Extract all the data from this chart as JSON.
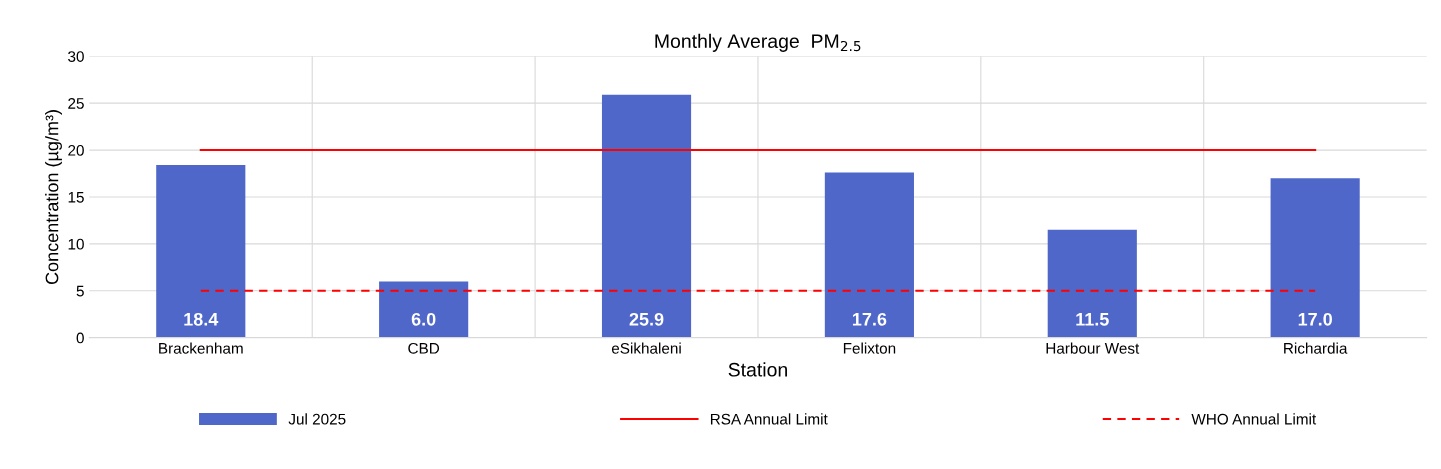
{
  "chart_data": {
    "type": "bar",
    "title": "Monthly Average  PM$_{2.5}$",
    "xlabel": "Station",
    "ylabel": "Concentration (µg/m³)",
    "categories": [
      "Brackenham",
      "CBD",
      "eSikhaleni",
      "Felixton",
      "Harbour West",
      "Richardia"
    ],
    "series": [
      {
        "name": "Jul 2025",
        "color": "#4f67c8",
        "values": [
          18.4,
          6.0,
          25.9,
          17.6,
          11.5,
          17.0
        ],
        "value_labels": [
          "18.4",
          "6.0",
          "25.9",
          "17.6",
          "11.5",
          "17.0"
        ]
      },
      {
        "name": "RSA Annual Limit",
        "type": "line",
        "color": "#ff0000",
        "line_style": "solid",
        "values": [
          20,
          20,
          20,
          20,
          20,
          20
        ]
      },
      {
        "name": "WHO Annual Limit",
        "type": "line",
        "color": "#ff0000",
        "line_style": "dashed",
        "values": [
          5,
          5,
          5,
          5,
          5,
          5
        ]
      }
    ],
    "ylim": [
      0,
      30
    ],
    "yticks": [
      0,
      5,
      10,
      15,
      20,
      25,
      30
    ],
    "grid": true,
    "legend": "bottom",
    "marker": "none"
  }
}
